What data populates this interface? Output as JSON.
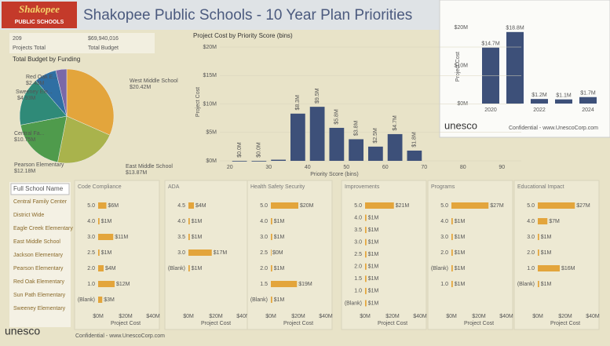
{
  "header": {
    "title": "Shakopee Public Schools - 10 Year Plan Priorities",
    "logo": {
      "name": "Shakopee",
      "sub": "PUBLIC SCHOOLS"
    }
  },
  "kpis": [
    {
      "value": "209",
      "label": "Projects Total"
    },
    {
      "value": "$69,940,016",
      "label": "Total Budget"
    }
  ],
  "pie": {
    "type": "pie",
    "title": "Total Budget by Funding",
    "labels": [
      "West Middle School",
      "East Middle School",
      "Pearson Elementary",
      "Central Fa...",
      "Sweeney Ele...",
      "Red Oak E..."
    ],
    "values": [
      20.42,
      13.87,
      12.18,
      10.75,
      4.93,
      2.43
    ],
    "value_labels": [
      "$20.42M",
      "$13.87M",
      "$12.18M",
      "$10.75M",
      "$4.93M",
      "$2.43M"
    ],
    "colors": [
      "#e3a53c",
      "#a9b34c",
      "#4f9b4c",
      "#2f8a78",
      "#2f6fa3",
      "#7a68a8"
    ]
  },
  "histogram": {
    "type": "histogram",
    "title": "Project Cost by Priority Score (bins)",
    "bins": [
      20,
      25,
      30,
      35,
      40,
      45,
      50,
      55,
      60,
      65,
      70
    ],
    "values": [
      0.0,
      0.0,
      0.2,
      8.3,
      9.5,
      5.8,
      3.8,
      2.5,
      4.7,
      1.8
    ],
    "value_labels": [
      "$0.0M",
      "$0.0M",
      null,
      "$8.3M",
      "$9.5M",
      "$5.8M",
      "$3.8M",
      "$2.5M",
      "$4.7M",
      "$1.8M"
    ],
    "xlim": [
      15,
      95
    ],
    "xticks": [
      20,
      30,
      40,
      50,
      60,
      70,
      80,
      90
    ],
    "ylim": [
      0,
      20
    ],
    "yticks": [
      {
        "value": 0,
        "label": "$0M"
      },
      {
        "value": 5,
        "label": "$5M"
      },
      {
        "value": 10,
        "label": "$10M"
      },
      {
        "value": 15,
        "label": "$15M"
      },
      {
        "value": 20,
        "label": "$20M"
      }
    ],
    "xlabel": "Priority Score (bins)",
    "ylabel": "Project Cost",
    "color": "#3d5079"
  },
  "inset": {
    "type": "bar",
    "categories": [
      "2020",
      null,
      "2022",
      null,
      "2024"
    ],
    "values": [
      14.7,
      18.8,
      1.2,
      1.1,
      1.7
    ],
    "value_labels": [
      "$14.7M",
      "$18.8M",
      "$1.2M",
      "$1.1M",
      "$1.7M"
    ],
    "ylim": [
      0,
      20
    ],
    "yticks": [
      {
        "value": 0,
        "label": "$0M"
      },
      {
        "value": 10,
        "label": "$10M"
      },
      {
        "value": 20,
        "label": "$20M"
      }
    ],
    "ylabel": "Project Cost",
    "color": "#3d5079",
    "footer": {
      "brand": "unesco",
      "text": "Confidential - www.UnescoCorp.com"
    }
  },
  "slicer": {
    "title": "Full School Name",
    "items": [
      "Central Family Center",
      "District Wide",
      "Eagle Creek Elementary",
      "East Middle School",
      "Jackson Elementary",
      "Pearson Elementary",
      "Red Oak Elementary",
      "Sun Path Elementary",
      "Sweeney Elementary"
    ]
  },
  "panels": [
    {
      "type": "bar",
      "title": "Code Compliance",
      "categories": [
        "5.0",
        "4.0",
        "3.0",
        "2.5",
        "2.0",
        "1.0",
        "(Blank)"
      ],
      "values": [
        6,
        1,
        11,
        1,
        4,
        12,
        3
      ],
      "value_labels": [
        "$6M",
        "$1M",
        "$11M",
        "$1M",
        "$4M",
        "$12M",
        "$3M"
      ]
    },
    {
      "type": "bar",
      "title": "ADA",
      "categories": [
        "4.5",
        "4.0",
        "3.5",
        "3.0",
        "(Blank)"
      ],
      "values": [
        4,
        1,
        1,
        17,
        1
      ],
      "value_labels": [
        "$4M",
        "$1M",
        "$1M",
        "$17M",
        "$1M"
      ]
    },
    {
      "type": "bar",
      "title": "Health Safety Security",
      "categories": [
        "5.0",
        "4.0",
        "3.0",
        "2.5",
        "2.0",
        "1.5",
        "(Blank)"
      ],
      "values": [
        20,
        1,
        1,
        0,
        1,
        19,
        1
      ],
      "value_labels": [
        "$20M",
        "$1M",
        "$1M",
        "$0M",
        "$1M",
        "$19M",
        "$1M"
      ]
    },
    {
      "type": "bar",
      "title": "Improvements",
      "categories": [
        "5.0",
        "4.0",
        "3.5",
        "3.0",
        "2.5",
        "2.0",
        "1.5",
        "1.0",
        "(Blank)"
      ],
      "values": [
        21,
        1,
        1,
        1,
        1,
        1,
        1,
        1,
        1
      ],
      "value_labels": [
        "$21M",
        "$1M",
        "$1M",
        "$1M",
        "$1M",
        "$1M",
        "$1M",
        "$1M",
        "$1M"
      ]
    },
    {
      "type": "bar",
      "title": "Programs",
      "categories": [
        "5.0",
        "4.0",
        "3.0",
        "2.0",
        "(Blank)",
        "1.0"
      ],
      "values": [
        27,
        1,
        1,
        1,
        1,
        1
      ],
      "value_labels": [
        "$27M",
        "$1M",
        "$1M",
        "$1M",
        "$1M",
        "$1M"
      ]
    },
    {
      "type": "bar",
      "title": "Educational Impact",
      "categories": [
        "5.0",
        "4.0",
        "3.0",
        "2.0",
        "1.0",
        "(Blank)"
      ],
      "values": [
        27,
        7,
        1,
        1,
        16,
        1
      ],
      "value_labels": [
        "$27M",
        "$7M",
        "$1M",
        "$1M",
        "$16M",
        "$1M"
      ]
    }
  ],
  "panel_axis": {
    "xlim": [
      0,
      40
    ],
    "xticks": [
      {
        "value": 0,
        "label": "$0M"
      },
      {
        "value": 20,
        "label": "$20M"
      },
      {
        "value": 40,
        "label": "$40M"
      }
    ],
    "xlabel": "Project Cost",
    "color": "#e3a53c"
  },
  "footer": {
    "brand": "unesco",
    "text": "Confidential - www.UnescoCorp.com"
  }
}
